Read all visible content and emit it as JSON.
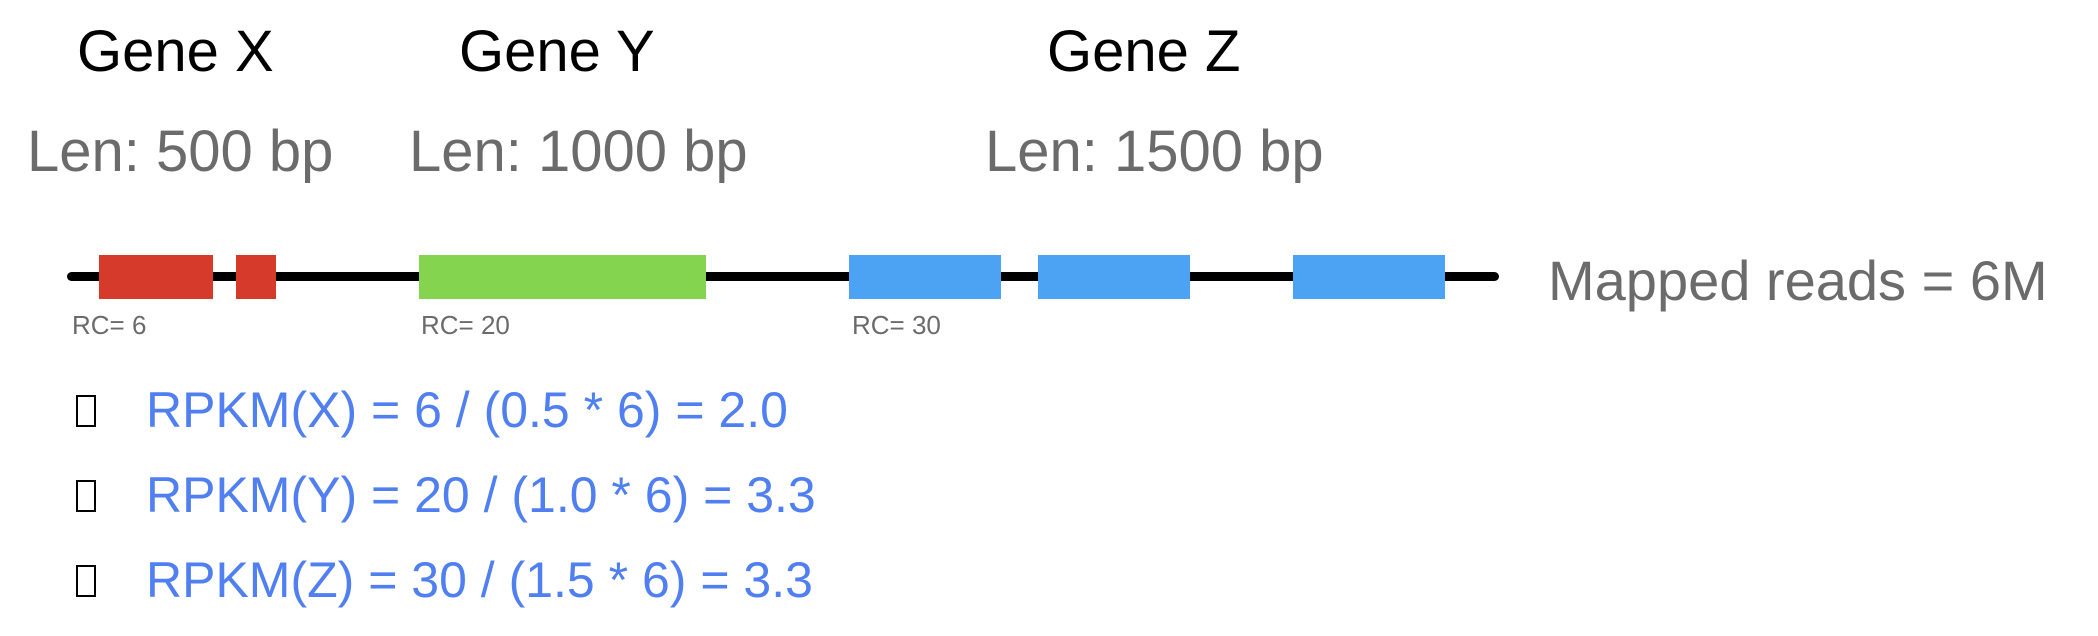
{
  "genes": [
    {
      "name": "Gene X",
      "length": "Len: 500 bp",
      "read_count": "RC= 6",
      "color": "#d63a2a"
    },
    {
      "name": "Gene Y",
      "length": "Len: 1000 bp",
      "read_count": "RC= 20",
      "color": "#84d44f"
    },
    {
      "name": "Gene Z",
      "length": "Len: 1500 bp",
      "read_count": "RC= 30",
      "color": "#4ca3f3"
    }
  ],
  "mapped_reads": "Mapped reads = 6M",
  "formula_color": "#4f7ff0",
  "formulas": [
    "RPKM(X) = 6 / (0.5 * 6) = 2.0",
    "RPKM(Y) = 20 / (1.0 * 6) = 3.3",
    "RPKM(Z) = 30 / (1.5 * 6) = 3.3"
  ]
}
